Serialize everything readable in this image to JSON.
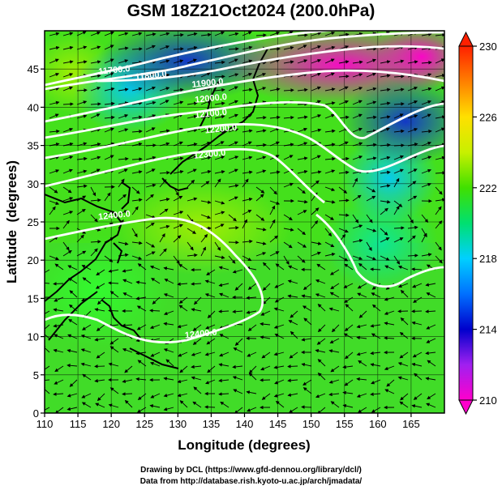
{
  "title": "GSM 18Z21Oct2024 (200.0hPa)",
  "xlabel": "Longitude (degrees)",
  "ylabel": "Latitude  (degrees)",
  "x_ticks": [
    110,
    115,
    120,
    125,
    130,
    135,
    140,
    145,
    150,
    155,
    160,
    165
  ],
  "y_ticks": [
    0,
    5,
    10,
    15,
    20,
    25,
    30,
    35,
    40,
    45
  ],
  "x_range": [
    110,
    170
  ],
  "y_range": [
    0,
    50
  ],
  "colorbar": {
    "ticks": [
      210,
      214,
      218,
      222,
      226,
      230
    ],
    "range": [
      210,
      230
    ],
    "colors": [
      "#ff00cc",
      "#a020f0",
      "#0000cc",
      "#0070ff",
      "#00d0ff",
      "#00e070",
      "#40e000",
      "#c8f000",
      "#ffe000",
      "#ff8000",
      "#ff2000"
    ]
  },
  "contours": [
    {
      "label": "11700.0",
      "lon": 120.5,
      "lat": 44.5
    },
    {
      "label": "11800.0",
      "lon": 126.0,
      "lat": 43.8
    },
    {
      "label": "11900.0",
      "lon": 134.5,
      "lat": 42.8
    },
    {
      "label": "12000.0",
      "lon": 135.0,
      "lat": 40.8
    },
    {
      "label": "12100.0",
      "lon": 135.0,
      "lat": 38.8
    },
    {
      "label": "12200.0",
      "lon": 136.5,
      "lat": 36.8
    },
    {
      "label": "12300.0",
      "lon": 134.8,
      "lat": 33.5
    },
    {
      "label": "12400.0",
      "lon": 120.5,
      "lat": 25.5
    },
    {
      "label": "12400.0",
      "lon": 133.5,
      "lat": 10.0
    }
  ],
  "credits": {
    "line1": "Drawing by DCL (https://www.gfd-dennou.org/library/dcl/)",
    "line2": "Data from http://database.rish.kyoto-u.ac.jp/arch/jmadata/"
  }
}
